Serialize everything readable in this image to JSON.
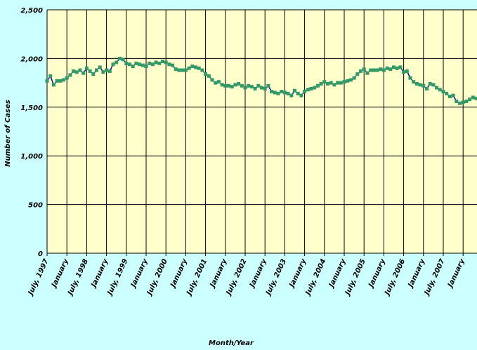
{
  "chart_data": {
    "type": "line",
    "y_label": "Number of Cases",
    "x_label": "Month/Year",
    "categories": [
      "July, 1997",
      null,
      null,
      null,
      null,
      null,
      "January",
      null,
      null,
      null,
      null,
      null,
      "July, 1998",
      null,
      null,
      null,
      null,
      null,
      "January",
      null,
      null,
      null,
      null,
      null,
      "July, 1999",
      null,
      null,
      null,
      null,
      null,
      "January",
      null,
      null,
      null,
      null,
      null,
      "July, 2000",
      null,
      null,
      null,
      null,
      null,
      "January",
      null,
      null,
      null,
      null,
      null,
      "July, 2001",
      null,
      null,
      null,
      null,
      null,
      "January",
      null,
      null,
      null,
      null,
      null,
      "July, 2002",
      null,
      null,
      null,
      null,
      null,
      "January",
      null,
      null,
      null,
      null,
      null,
      "July, 2003",
      null,
      null,
      null,
      null,
      null,
      "January",
      null,
      null,
      null,
      null,
      null,
      "July, 2004",
      null,
      null,
      null,
      null,
      null,
      "January",
      null,
      null,
      null,
      null,
      null,
      "July, 2005",
      null,
      null,
      null,
      null,
      null,
      "January",
      null,
      null,
      null,
      null,
      null,
      "July, 2006",
      null,
      null,
      null,
      null,
      null,
      "January",
      null,
      null,
      null,
      null,
      null,
      "July, 2007",
      null,
      null,
      null,
      null,
      null,
      "January",
      null,
      null,
      null,
      null
    ],
    "series": [
      {
        "color": "#0000cc",
        "marker_color": "#339966",
        "values": [
          1770,
          1820,
          1730,
          1770,
          1770,
          1780,
          1800,
          1830,
          1870,
          1860,
          1880,
          1850,
          1900,
          1870,
          1840,
          1880,
          1910,
          1860,
          1880,
          1870,
          1940,
          1960,
          2000,
          1990,
          1950,
          1940,
          1920,
          1950,
          1940,
          1930,
          1920,
          1950,
          1940,
          1960,
          1950,
          1970,
          1960,
          1940,
          1930,
          1890,
          1880,
          1880,
          1880,
          1900,
          1920,
          1910,
          1900,
          1880,
          1840,
          1820,
          1780,
          1750,
          1760,
          1730,
          1720,
          1720,
          1710,
          1730,
          1740,
          1720,
          1700,
          1720,
          1710,
          1690,
          1720,
          1700,
          1690,
          1720,
          1660,
          1650,
          1640,
          1660,
          1650,
          1640,
          1620,
          1670,
          1640,
          1620,
          1660,
          1680,
          1690,
          1700,
          1720,
          1740,
          1760,
          1740,
          1750,
          1730,
          1750,
          1750,
          1760,
          1770,
          1780,
          1800,
          1840,
          1870,
          1890,
          1850,
          1880,
          1880,
          1880,
          1890,
          1880,
          1900,
          1890,
          1910,
          1900,
          1910,
          1860,
          1870,
          1800,
          1760,
          1740,
          1730,
          1720,
          1690,
          1740,
          1730,
          1700,
          1680,
          1660,
          1640,
          1610,
          1620,
          1560,
          1540,
          1550,
          1560,
          1580,
          1600,
          1590
        ]
      }
    ],
    "ylim": [
      0,
      2500
    ],
    "yticks": [
      0,
      500,
      {
        "value": 1000,
        "label": "1,000"
      },
      {
        "value": 1500,
        "label": "1,500"
      },
      {
        "value": 2000,
        "label": "2,000"
      },
      {
        "value": 2500,
        "label": "2,500"
      }
    ],
    "grid": true
  }
}
